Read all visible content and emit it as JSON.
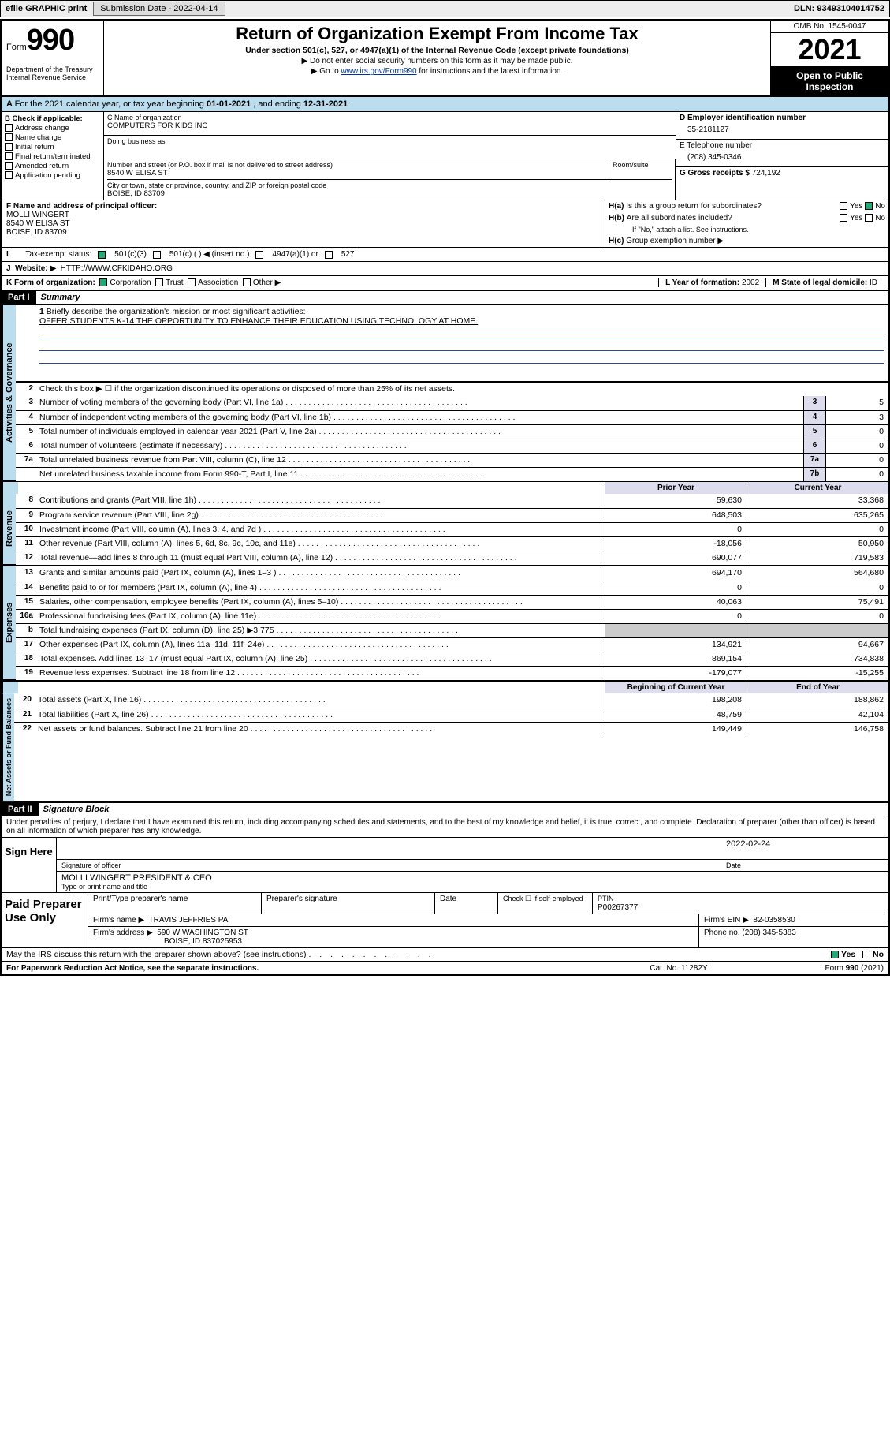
{
  "topbar": {
    "efile": "efile GRAPHIC print",
    "sub_lbl": "Submission Date - ",
    "sub_date": "2022-04-14",
    "dln_lbl": "DLN: ",
    "dln": "93493104014752"
  },
  "header": {
    "form_word": "Form",
    "form_num": "990",
    "dept": "Department of the Treasury\nInternal Revenue Service",
    "title": "Return of Organization Exempt From Income Tax",
    "sub": "Under section 501(c), 527, or 4947(a)(1) of the Internal Revenue Code (except private foundations)",
    "note1": "Do not enter social security numbers on this form as it may be made public.",
    "note2_pre": "Go to ",
    "note2_link": "www.irs.gov/Form990",
    "note2_post": " for instructions and the latest information.",
    "omb": "OMB No. 1545-0047",
    "year": "2021",
    "open": "Open to Public Inspection"
  },
  "A": {
    "text_pre": "For the 2021 calendar year, or tax year beginning ",
    "begin": "01-01-2021",
    "mid": " , and ending ",
    "end": "12-31-2021"
  },
  "B": {
    "hdr": "B Check if applicable:",
    "opts": [
      "Address change",
      "Name change",
      "Initial return",
      "Final return/terminated",
      "Amended return",
      "Application pending"
    ]
  },
  "C": {
    "lbl_name": "C Name of organization",
    "name": "COMPUTERS FOR KIDS INC",
    "lbl_dba": "Doing business as",
    "dba": "",
    "lbl_addr": "Number and street (or P.O. box if mail is not delivered to street address)",
    "room_lbl": "Room/suite",
    "addr": "8540 W ELISA ST",
    "lbl_city": "City or town, state or province, country, and ZIP or foreign postal code",
    "city": "BOISE, ID  83709"
  },
  "D": {
    "lbl": "D Employer identification number",
    "val": "35-2181127"
  },
  "E": {
    "lbl": "E Telephone number",
    "val": "(208) 345-0346"
  },
  "G": {
    "lbl": "G Gross receipts $ ",
    "val": "724,192"
  },
  "F": {
    "lbl": "F Name and address of principal officer:",
    "name": "MOLLI WINGERT",
    "addr1": "8540 W ELISA ST",
    "addr2": "BOISE, ID  83709"
  },
  "H": {
    "a": "Is this a group return for subordinates?",
    "a_yes": "Yes",
    "a_no": "No",
    "b": "Are all subordinates included?",
    "b_note": "If \"No,\" attach a list. See instructions.",
    "c": "Group exemption number ▶"
  },
  "I": {
    "lbl": "Tax-exempt status:",
    "c3": "501(c)(3)",
    "c": "501(c) (  ) ◀ (insert no.)",
    "a4947": "4947(a)(1) or",
    "s527": "527"
  },
  "J": {
    "lbl": "Website: ▶",
    "val": "HTTP://WWW.CFKIDAHO.ORG"
  },
  "K": {
    "lbl": "K Form of organization:",
    "opts": [
      "Corporation",
      "Trust",
      "Association",
      "Other ▶"
    ]
  },
  "L": {
    "lbl": "L Year of formation: ",
    "val": "2002"
  },
  "M": {
    "lbl": "M State of legal domicile: ",
    "val": "ID"
  },
  "partI": {
    "hdr": "Part I",
    "title": "Summary",
    "l1_lbl": "Briefly describe the organization's mission or most significant activities:",
    "l1_val": "OFFER STUDENTS K-14 THE OPPORTUNITY TO ENHANCE THEIR EDUCATION USING TECHNOLOGY AT HOME.",
    "l2": "Check this box ▶ ☐  if the organization discontinued its operations or disposed of more than 25% of its net assets.",
    "gov_lines": [
      {
        "n": "3",
        "t": "Number of voting members of the governing body (Part VI, line 1a)",
        "b": "3",
        "v": "5"
      },
      {
        "n": "4",
        "t": "Number of independent voting members of the governing body (Part VI, line 1b)",
        "b": "4",
        "v": "3"
      },
      {
        "n": "5",
        "t": "Total number of individuals employed in calendar year 2021 (Part V, line 2a)",
        "b": "5",
        "v": "0"
      },
      {
        "n": "6",
        "t": "Total number of volunteers (estimate if necessary)",
        "b": "6",
        "v": "0"
      },
      {
        "n": "7a",
        "t": "Total unrelated business revenue from Part VIII, column (C), line 12",
        "b": "7a",
        "v": "0"
      },
      {
        "n": "",
        "t": "Net unrelated business taxable income from Form 990-T, Part I, line 11",
        "b": "7b",
        "v": "0"
      }
    ],
    "col_prior": "Prior Year",
    "col_curr": "Current Year",
    "rev_lines": [
      {
        "n": "8",
        "t": "Contributions and grants (Part VIII, line 1h)",
        "p": "59,630",
        "c": "33,368"
      },
      {
        "n": "9",
        "t": "Program service revenue (Part VIII, line 2g)",
        "p": "648,503",
        "c": "635,265"
      },
      {
        "n": "10",
        "t": "Investment income (Part VIII, column (A), lines 3, 4, and 7d )",
        "p": "0",
        "c": "0"
      },
      {
        "n": "11",
        "t": "Other revenue (Part VIII, column (A), lines 5, 6d, 8c, 9c, 10c, and 11e)",
        "p": "-18,056",
        "c": "50,950"
      },
      {
        "n": "12",
        "t": "Total revenue—add lines 8 through 11 (must equal Part VIII, column (A), line 12)",
        "p": "690,077",
        "c": "719,583"
      }
    ],
    "exp_lines": [
      {
        "n": "13",
        "t": "Grants and similar amounts paid (Part IX, column (A), lines 1–3 )",
        "p": "694,170",
        "c": "564,680"
      },
      {
        "n": "14",
        "t": "Benefits paid to or for members (Part IX, column (A), line 4)",
        "p": "0",
        "c": "0"
      },
      {
        "n": "15",
        "t": "Salaries, other compensation, employee benefits (Part IX, column (A), lines 5–10)",
        "p": "40,063",
        "c": "75,491"
      },
      {
        "n": "16a",
        "t": "Professional fundraising fees (Part IX, column (A), line 11e)",
        "p": "0",
        "c": "0"
      },
      {
        "n": "b",
        "t": "Total fundraising expenses (Part IX, column (D), line 25) ▶3,775",
        "p": "",
        "c": "",
        "gray": true
      },
      {
        "n": "17",
        "t": "Other expenses (Part IX, column (A), lines 11a–11d, 11f–24e)",
        "p": "134,921",
        "c": "94,667"
      },
      {
        "n": "18",
        "t": "Total expenses. Add lines 13–17 (must equal Part IX, column (A), line 25)",
        "p": "869,154",
        "c": "734,838"
      },
      {
        "n": "19",
        "t": "Revenue less expenses. Subtract line 18 from line 12",
        "p": "-179,077",
        "c": "-15,255"
      }
    ],
    "na_hdr_b": "Beginning of Current Year",
    "na_hdr_e": "End of Year",
    "na_lines": [
      {
        "n": "20",
        "t": "Total assets (Part X, line 16)",
        "p": "198,208",
        "c": "188,862"
      },
      {
        "n": "21",
        "t": "Total liabilities (Part X, line 26)",
        "p": "48,759",
        "c": "42,104"
      },
      {
        "n": "22",
        "t": "Net assets or fund balances. Subtract line 21 from line 20",
        "p": "149,449",
        "c": "146,758"
      }
    ]
  },
  "partII": {
    "hdr": "Part II",
    "title": "Signature Block",
    "decl": "Under penalties of perjury, I declare that I have examined this return, including accompanying schedules and statements, and to the best of my knowledge and belief, it is true, correct, and complete. Declaration of preparer (other than officer) is based on all information of which preparer has any knowledge.",
    "sign_here": "Sign Here",
    "sig_officer": "Signature of officer",
    "date_lbl": "Date",
    "sig_date": "2022-02-24",
    "typed": "MOLLI WINGERT PRESIDENT & CEO",
    "typed_lbl": "Type or print name and title",
    "paid": "Paid Preparer Use Only",
    "p_name_lbl": "Print/Type preparer's name",
    "p_sig_lbl": "Preparer's signature",
    "p_date_lbl": "Date",
    "p_check_lbl": "Check ☐ if self-employed",
    "ptin_lbl": "PTIN",
    "ptin": "P00267377",
    "firm_name_lbl": "Firm's name    ▶",
    "firm_name": "TRAVIS JEFFRIES PA",
    "firm_ein_lbl": "Firm's EIN ▶",
    "firm_ein": "82-0358530",
    "firm_addr_lbl": "Firm's address ▶",
    "firm_addr1": "590 W WASHINGTON ST",
    "firm_addr2": "BOISE, ID  837025953",
    "firm_ph_lbl": "Phone no. ",
    "firm_ph": "(208) 345-5383",
    "may_irs": "May the IRS discuss this return with the preparer shown above? (see instructions)",
    "yes": "Yes",
    "no": "No"
  },
  "footer": {
    "pra": "For Paperwork Reduction Act Notice, see the separate instructions.",
    "cat": "Cat. No. 11282Y",
    "form": "Form 990 (2021)"
  },
  "tabs": {
    "gov": "Activities & Governance",
    "rev": "Revenue",
    "exp": "Expenses",
    "na": "Net Assets or Fund Balances"
  }
}
